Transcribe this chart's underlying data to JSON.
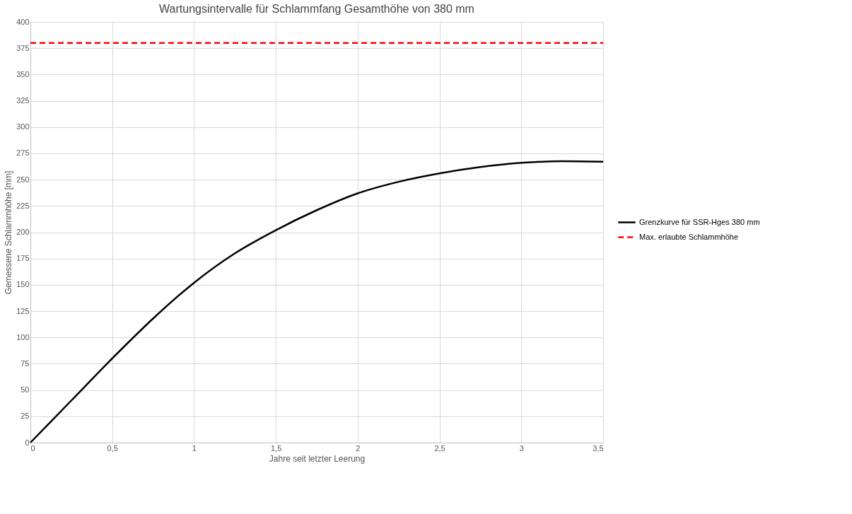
{
  "chart_data": {
    "type": "line",
    "title": "Wartungsintervalle für Schlammfang Gesamthöhe von 380 mm",
    "xlabel": "Jahre seit letzter Leerung",
    "ylabel": "Gemessene Schlammhöhe [mm]",
    "xlim": [
      0,
      3.5
    ],
    "xticks": [
      0,
      {
        "value": 0.5,
        "label": "0,5"
      },
      1,
      {
        "value": 1.5,
        "label": "1,5"
      },
      2,
      {
        "value": 2.5,
        "label": "2,5"
      },
      3,
      {
        "value": 3.5,
        "label": "3,5"
      }
    ],
    "ylim": [
      0,
      400
    ],
    "yticks": [
      0,
      25,
      50,
      75,
      100,
      125,
      150,
      175,
      200,
      225,
      250,
      275,
      300,
      325,
      350,
      375,
      400
    ],
    "grid": true,
    "legend": "right",
    "line_style": "solid",
    "marker": "none",
    "x": [
      0,
      0.25,
      0.5,
      0.75,
      1,
      1.25,
      1.5,
      1.75,
      2,
      2.25,
      2.5,
      2.75,
      3,
      3.25,
      3.5
    ],
    "series": [
      {
        "name": "Grenzkurve für SSR-Hges 380 mm",
        "color": "#000000",
        "values": [
          0,
          40,
          80,
          118,
          152,
          180,
          202,
          221,
          237,
          248,
          256,
          262,
          266,
          267.5,
          267
        ]
      }
    ],
    "ref_lines": [
      {
        "axis": "y",
        "value": 380,
        "label": "Max. erlaubte Schlammhöhe",
        "color": "#ff0000",
        "line_style": "dashed"
      }
    ]
  }
}
